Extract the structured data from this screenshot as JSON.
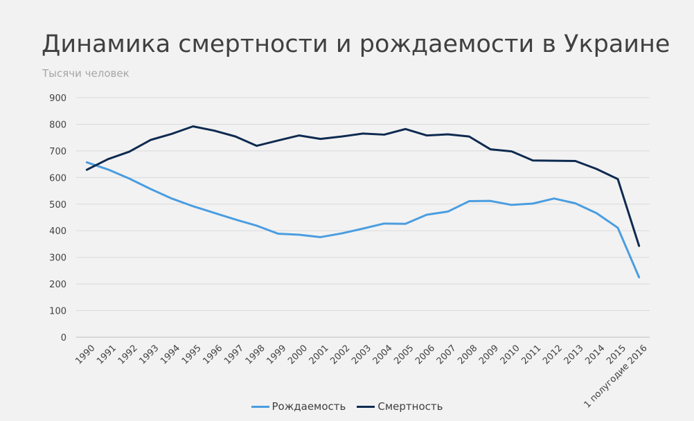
{
  "title": "Динамика смертности и рождаемости в Украине",
  "subtitle": "Тысячи человек",
  "colors": {
    "births": "#4a9de0",
    "deaths": "#0e2a50",
    "grid": "#d9d9d9",
    "axis": "#404040"
  },
  "chart_data": {
    "type": "line",
    "title": "Динамика смертности и рождаемости в Украине",
    "subtitle": "Тысячи человек",
    "xlabel": "",
    "ylabel": "",
    "ylim": [
      0,
      900
    ],
    "yticks": [
      "0",
      "100",
      "200",
      "300",
      "400",
      "500",
      "600",
      "700",
      "800",
      "900"
    ],
    "grid": true,
    "legend": "bottom-center",
    "categories": [
      "1990",
      "1991",
      "1992",
      "1993",
      "1994",
      "1995",
      "1996",
      "1997",
      "1998",
      "1999",
      "2000",
      "2001",
      "2002",
      "2003",
      "2004",
      "2005",
      "2006",
      "2007",
      "2008",
      "2009",
      "2010",
      "2011",
      "2012",
      "2013",
      "2014",
      "2015",
      "1 полугодие 2016"
    ],
    "series": [
      {
        "name": "Рождаемость",
        "values": [
          657,
          630,
          596,
          557,
          521,
          492,
          467,
          442,
          419,
          389,
          385,
          376,
          390,
          408,
          427,
          426,
          460,
          472,
          511,
          512,
          497,
          502,
          521,
          503,
          466,
          411,
          225
        ]
      },
      {
        "name": "Смертность",
        "values": [
          629,
          669,
          697,
          741,
          764,
          792,
          776,
          754,
          719,
          739,
          758,
          745,
          754,
          765,
          761,
          782,
          758,
          762,
          754,
          706,
          698,
          664,
          663,
          662,
          632,
          594,
          343
        ]
      }
    ]
  }
}
